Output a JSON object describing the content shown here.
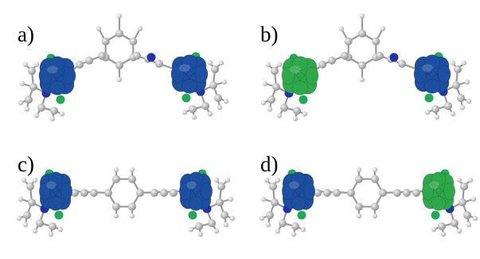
{
  "panels": [
    {
      "label": "a)",
      "layout": "meta",
      "left_spin_color": "#1c4fa0",
      "right_spin_color": "#1c4fa0"
    },
    {
      "label": "b)",
      "layout": "meta",
      "left_spin_color": "#2ea84a",
      "right_spin_color": "#1c4fa0"
    },
    {
      "label": "c)",
      "layout": "para",
      "left_spin_color": "#1c4fa0",
      "right_spin_color": "#1c4fa0"
    },
    {
      "label": "d)",
      "layout": "para",
      "left_spin_color": "#1c4fa0",
      "right_spin_color": "#2ea84a"
    }
  ],
  "atom_colors": {
    "carbon": "#a9a9a9",
    "hydrogen": "#d0d0d0",
    "nitrogen": "#2233aa",
    "chlorine": "#1faa55",
    "bond": "#9a9a9a"
  }
}
